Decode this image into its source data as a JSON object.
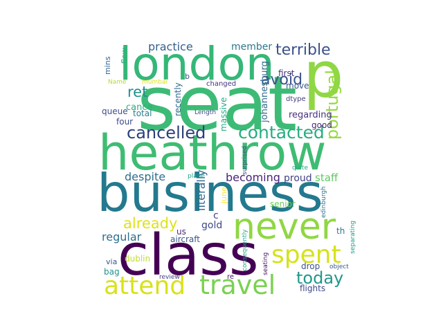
{
  "words": [
    {
      "text": "seat",
      "color": "#3dbb76"
    },
    {
      "text": "london",
      "color": "#35b778"
    },
    {
      "text": "p",
      "color": "#8fd744"
    },
    {
      "text": "heathrow",
      "color": "#3fbc73"
    },
    {
      "text": "business",
      "color": "#23798e"
    },
    {
      "text": "class",
      "color": "#440154"
    },
    {
      "text": "never",
      "color": "#90d743"
    },
    {
      "text": "attend",
      "color": "#d8e219"
    },
    {
      "text": "travel",
      "color": "#7ad151"
    },
    {
      "text": "spent",
      "color": "#d6e21a"
    },
    {
      "text": "cancelled",
      "color": "#2c3e7a"
    },
    {
      "text": "contacted",
      "color": "#27ad81"
    },
    {
      "text": "portugal",
      "color": "#95d840"
    },
    {
      "text": "terrible",
      "color": "#3b518b"
    },
    {
      "text": "avoid",
      "color": "#3a538b"
    },
    {
      "text": "ret",
      "color": "#218f8d"
    },
    {
      "text": "today",
      "color": "#1f988b"
    },
    {
      "text": "already",
      "color": "#dde318"
    },
    {
      "text": "regular",
      "color": "#2c6f8e"
    },
    {
      "text": "despite",
      "color": "#2e6e8e"
    },
    {
      "text": "becoming",
      "color": "#482475"
    },
    {
      "text": "practice",
      "color": "#355f8d"
    },
    {
      "text": "member",
      "color": "#2a778e"
    },
    {
      "text": "gold",
      "color": "#3f4889"
    },
    {
      "text": "staff",
      "color": "#5ec962"
    },
    {
      "text": "literally",
      "color": "#31678e"
    },
    {
      "text": "johannesburg",
      "color": "#30698e"
    },
    {
      "text": "cance",
      "color": "#28ae80"
    },
    {
      "text": "queue",
      "color": "#3e4a89"
    },
    {
      "text": "total",
      "color": "#26818e"
    },
    {
      "text": "four",
      "color": "#3e4989"
    },
    {
      "text": "recently",
      "color": "#306a8e"
    },
    {
      "text": "massive",
      "color": "#22a884"
    },
    {
      "text": "regarding",
      "color": "#46307e"
    },
    {
      "text": "good",
      "color": "#482677"
    },
    {
      "text": "first",
      "color": "#46327e"
    },
    {
      "text": "move",
      "color": "#3b528b"
    },
    {
      "text": "dtype",
      "color": "#433e85"
    },
    {
      "text": "proud",
      "color": "#424186"
    },
    {
      "text": "c",
      "color": "#414487"
    },
    {
      "text": "aircraft",
      "color": "#39568c"
    },
    {
      "text": "us",
      "color": "#482979"
    },
    {
      "text": "senior",
      "color": "#6ece58"
    },
    {
      "text": "dublin",
      "color": "#c0df25"
    },
    {
      "text": "via",
      "color": "#38598c"
    },
    {
      "text": "bag",
      "color": "#21918c"
    },
    {
      "text": "drop",
      "color": "#3b528b"
    },
    {
      "text": "flights",
      "color": "#3e4a89"
    },
    {
      "text": "th",
      "color": "#2a788e"
    },
    {
      "text": "review",
      "color": "#453781"
    },
    {
      "text": "re",
      "color": "#471164"
    },
    {
      "text": "mins",
      "color": "#32658e"
    },
    {
      "text": "flew",
      "color": "#2ab07f"
    },
    {
      "text": "Name",
      "color": "#b5de2b"
    },
    {
      "text": "mumbai",
      "color": "#dae319"
    },
    {
      "text": "b",
      "color": "#3f4788"
    },
    {
      "text": "changed",
      "color": "#46327e"
    },
    {
      "text": "Length",
      "color": "#3e4c8a"
    },
    {
      "text": "surprised",
      "color": "#3e4989"
    },
    {
      "text": "plane",
      "color": "#1fa088"
    },
    {
      "text": "quite",
      "color": "#22a785"
    },
    {
      "text": "june",
      "color": "#fde725"
    },
    {
      "text": "consequently",
      "color": "#22a785"
    },
    {
      "text": "seating",
      "color": "#471063"
    },
    {
      "text": "edinburgh",
      "color": "#2c718e"
    },
    {
      "text": "separating",
      "color": "#1f9a8a"
    },
    {
      "text": "object",
      "color": "#38598c"
    }
  ]
}
